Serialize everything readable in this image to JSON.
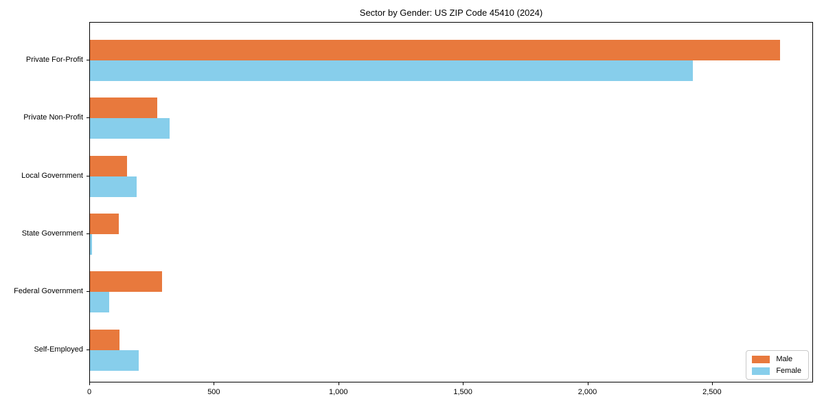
{
  "chart_data": {
    "type": "bar",
    "orientation": "horizontal",
    "title": "Sector by Gender: US ZIP Code 45410 (2024)",
    "categories": [
      "Private For-Profit",
      "Private Non-Profit",
      "Local Government",
      "State Government",
      "Federal Government",
      "Self-Employed"
    ],
    "series": [
      {
        "name": "Male",
        "color": "#e8793d",
        "values": [
          2770,
          270,
          150,
          115,
          290,
          119
        ]
      },
      {
        "name": "Female",
        "color": "#87ceeb",
        "values": [
          2420,
          320,
          188,
          8,
          76,
          195
        ]
      }
    ],
    "xlabel": "",
    "ylabel": "",
    "xlim": [
      0,
      2900
    ],
    "x_ticks": [
      0,
      500,
      1000,
      1500,
      2000,
      2500
    ],
    "x_tick_labels": [
      "0",
      "500",
      "1,000",
      "1,500",
      "2,000",
      "2,500"
    ],
    "legend": {
      "position": "lower right"
    },
    "grid": false,
    "axis_color": "#000000",
    "background_color": "#ffffff"
  }
}
